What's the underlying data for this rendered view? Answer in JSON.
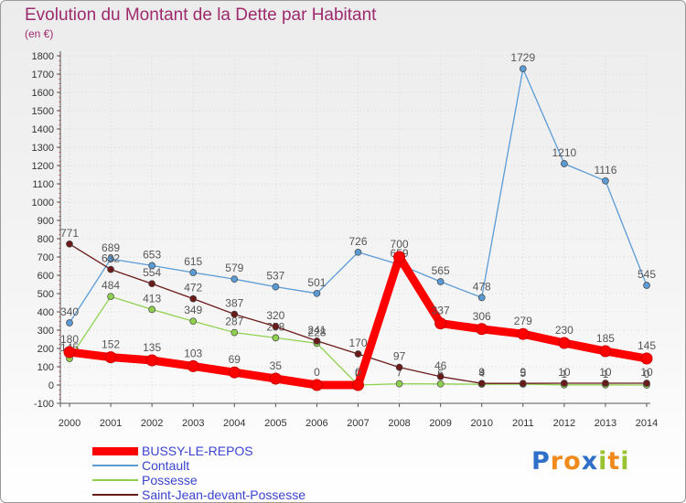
{
  "title": "Evolution du Montant de la Dette par Habitant",
  "subtitle": "(en €)",
  "logo": {
    "letters": [
      "P",
      "r",
      "o",
      "x",
      "i",
      "t",
      "i"
    ],
    "colors": [
      "#2f6fc8",
      "#f08a1c",
      "#f08a1c",
      "#2f6fc8",
      "#9ac331",
      "#f08a1c",
      "#9ac331"
    ]
  },
  "chart_data": {
    "type": "line",
    "title": "Evolution du Montant de la Dette par Habitant",
    "subtitle": "(en €)",
    "xlabel": "",
    "ylabel": "",
    "ylim": [
      -100,
      1800
    ],
    "y_ticks": [
      -100,
      0,
      100,
      200,
      300,
      400,
      500,
      600,
      700,
      800,
      900,
      1000,
      1100,
      1200,
      1300,
      1400,
      1500,
      1600,
      1700,
      1800
    ],
    "x": [
      "2000",
      "2001",
      "2002",
      "2003",
      "2004",
      "2005",
      "2006",
      "2007",
      "2008",
      "2009",
      "2010",
      "2011",
      "2012",
      "2013",
      "2014"
    ],
    "grid": true,
    "legend_position": "bottom-left",
    "series": [
      {
        "name": "Contault",
        "color": "#5b9bd5",
        "values": [
          340,
          689,
          653,
          615,
          579,
          537,
          501,
          726,
          659,
          565,
          478,
          1729,
          1210,
          1116,
          545
        ],
        "labels": [
          "340",
          "689",
          "653",
          "615",
          "579",
          "537",
          "501",
          "726",
          "659",
          "565",
          "478",
          "1729",
          "1210",
          "1116",
          "545"
        ]
      },
      {
        "name": "Possesse",
        "color": "#8fd14f",
        "values": [
          145,
          484,
          413,
          349,
          287,
          258,
          228,
          0,
          7,
          6,
          4,
          5,
          1,
          1,
          0
        ],
        "labels": [
          "145",
          "484",
          "413",
          "349",
          "287",
          "258",
          "228",
          "0",
          "7",
          "6",
          "4",
          "5",
          "1",
          "1",
          "0"
        ]
      },
      {
        "name": "Saint-Jean-devant-Possesse",
        "color": "#6b1a1a",
        "values": [
          771,
          632,
          554,
          472,
          387,
          320,
          241,
          170,
          97,
          46,
          9,
          9,
          10,
          10,
          10
        ],
        "labels": [
          "771",
          "632",
          "554",
          "472",
          "387",
          "320",
          "241",
          "170",
          "97",
          "46",
          "9",
          "9",
          "10",
          "10",
          "10"
        ]
      },
      {
        "name": "BUSSY-LE-REPOS",
        "color": "#ff0000",
        "values": [
          180,
          152,
          135,
          103,
          69,
          35,
          0,
          0,
          700,
          337,
          306,
          279,
          230,
          185,
          145
        ],
        "labels": [
          "180",
          "152",
          "135",
          "103",
          "69",
          "35",
          "0",
          "0",
          "700",
          "337",
          "306",
          "279",
          "230",
          "185",
          "145"
        ]
      }
    ]
  },
  "legend": [
    {
      "label": "BUSSY-LE-REPOS",
      "color": "#ff0000",
      "thickness": 9
    },
    {
      "label": "Contault",
      "color": "#5b9bd5",
      "thickness": 2
    },
    {
      "label": "Possesse",
      "color": "#8fd14f",
      "thickness": 2
    },
    {
      "label": "Saint-Jean-devant-Possesse",
      "color": "#6b1a1a",
      "thickness": 2
    }
  ]
}
